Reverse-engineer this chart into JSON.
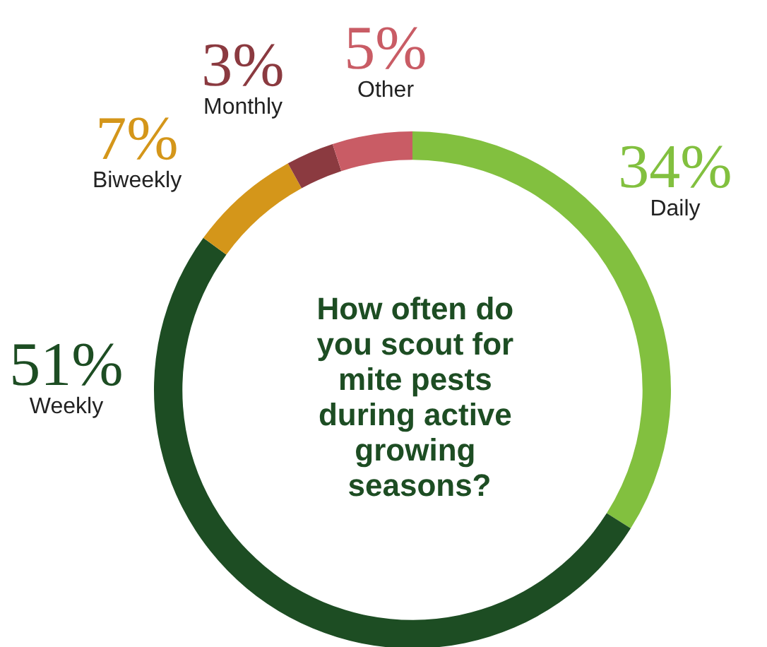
{
  "chart_data": {
    "type": "donut",
    "title": "How often do you scout for mite pests during active growing seasons?",
    "categories": [
      "Daily",
      "Weekly",
      "Biweekly",
      "Monthly",
      "Other"
    ],
    "values": [
      34,
      51,
      7,
      3,
      5
    ],
    "value_labels": [
      "34%",
      "51%",
      "7%",
      "3%",
      "5%"
    ],
    "colors": [
      "#82c03f",
      "#1d4d23",
      "#d4961a",
      "#8b3a40",
      "#c95c65"
    ],
    "legend": false
  }
}
